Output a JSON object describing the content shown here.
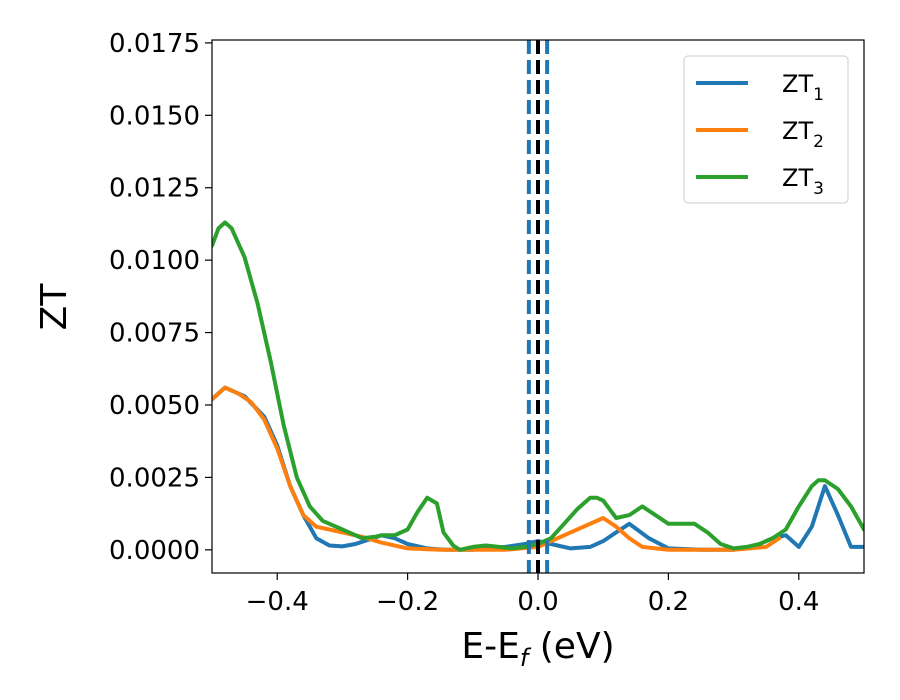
{
  "chart_data": {
    "type": "line",
    "xlabel": "E-E",
    "xlabel_sub": "f",
    "xlabel_unit": " (eV)",
    "ylabel": "ZT",
    "xlim": [
      -0.5,
      0.5
    ],
    "ylim": [
      -0.0008,
      0.0176
    ],
    "xticks": [
      -0.4,
      -0.2,
      0.0,
      0.2,
      0.4
    ],
    "xtick_labels": [
      "−0.4",
      "−0.2",
      "0.0",
      "0.2",
      "0.4"
    ],
    "yticks": [
      0.0,
      0.0025,
      0.005,
      0.0075,
      0.01,
      0.0125,
      0.015,
      0.0175
    ],
    "ytick_labels": [
      "0.0000",
      "0.0025",
      "0.0050",
      "0.0075",
      "0.0100",
      "0.0125",
      "0.0150",
      "0.0175"
    ],
    "grid": false,
    "legend_position": "top-right",
    "vlines": [
      {
        "x": -0.014,
        "color": "#1f77b4",
        "style": "dashed"
      },
      {
        "x": 0.0,
        "color": "#000000",
        "style": "dashed"
      },
      {
        "x": 0.014,
        "color": "#1f77b4",
        "style": "dashed"
      }
    ],
    "series": [
      {
        "name": "ZT",
        "name_sub": "1",
        "color": "#1f77b4",
        "x": [
          -0.5,
          -0.48,
          -0.45,
          -0.42,
          -0.4,
          -0.38,
          -0.36,
          -0.34,
          -0.32,
          -0.3,
          -0.28,
          -0.26,
          -0.24,
          -0.22,
          -0.2,
          -0.17,
          -0.155,
          -0.14,
          -0.12,
          -0.1,
          -0.08,
          -0.05,
          -0.02,
          0.0,
          0.02,
          0.05,
          0.08,
          0.1,
          0.12,
          0.14,
          0.17,
          0.2,
          0.25,
          0.3,
          0.33,
          0.36,
          0.38,
          0.4,
          0.42,
          0.44,
          0.46,
          0.48,
          0.5
        ],
        "y": [
          0.0052,
          0.0056,
          0.0053,
          0.0046,
          0.0036,
          0.0022,
          0.0012,
          0.0004,
          0.00015,
          0.00012,
          0.0002,
          0.00035,
          0.0005,
          0.0004,
          0.0002,
          5e-05,
          2e-05,
          0.0,
          0.0,
          0.0,
          5e-05,
          0.0001,
          0.0002,
          0.0003,
          0.0002,
          5e-05,
          0.0001,
          0.0003,
          0.0006,
          0.0009,
          0.0004,
          5e-05,
          0.0,
          0.0,
          0.0001,
          0.0004,
          0.0005,
          0.0001,
          0.0008,
          0.0022,
          0.0012,
          0.0001,
          0.0001
        ]
      },
      {
        "name": "ZT",
        "name_sub": "2",
        "color": "#ff7f0e",
        "x": [
          -0.5,
          -0.48,
          -0.46,
          -0.44,
          -0.42,
          -0.4,
          -0.38,
          -0.36,
          -0.34,
          -0.32,
          -0.3,
          -0.27,
          -0.24,
          -0.2,
          -0.15,
          -0.1,
          -0.05,
          0.0,
          0.05,
          0.1,
          0.12,
          0.14,
          0.16,
          0.2,
          0.25,
          0.3,
          0.35,
          0.37
        ],
        "y": [
          0.0052,
          0.0056,
          0.0054,
          0.0051,
          0.0045,
          0.0035,
          0.0022,
          0.0012,
          0.0008,
          0.0007,
          0.0006,
          0.00045,
          0.00025,
          5e-05,
          0.0,
          0.0,
          0.0,
          0.0001,
          0.0006,
          0.0011,
          0.0008,
          0.0004,
          0.0001,
          0.0,
          0.0,
          0.0,
          0.0001,
          0.0004
        ]
      },
      {
        "name": "ZT",
        "name_sub": "3",
        "color": "#2ca02c",
        "x": [
          -0.5,
          -0.49,
          -0.48,
          -0.47,
          -0.45,
          -0.43,
          -0.41,
          -0.39,
          -0.37,
          -0.35,
          -0.33,
          -0.3,
          -0.27,
          -0.25,
          -0.24,
          -0.22,
          -0.2,
          -0.185,
          -0.17,
          -0.155,
          -0.145,
          -0.13,
          -0.12,
          -0.1,
          -0.08,
          -0.06,
          -0.04,
          -0.02,
          0.0,
          0.02,
          0.04,
          0.06,
          0.08,
          0.09,
          0.1,
          0.12,
          0.14,
          0.16,
          0.18,
          0.2,
          0.22,
          0.24,
          0.26,
          0.28,
          0.3,
          0.32,
          0.34,
          0.36,
          0.38,
          0.4,
          0.42,
          0.43,
          0.44,
          0.46,
          0.48,
          0.5
        ],
        "y": [
          0.0105,
          0.0111,
          0.0113,
          0.0111,
          0.0101,
          0.0085,
          0.0065,
          0.0043,
          0.0025,
          0.0015,
          0.001,
          0.0007,
          0.0004,
          0.00045,
          0.0005,
          0.0005,
          0.0007,
          0.0013,
          0.0018,
          0.0016,
          0.0006,
          0.00015,
          0.0,
          0.0001,
          0.00015,
          0.0001,
          5e-05,
          0.0001,
          0.0002,
          0.0004,
          0.0009,
          0.0014,
          0.0018,
          0.0018,
          0.0017,
          0.0011,
          0.0012,
          0.0015,
          0.0012,
          0.0009,
          0.0009,
          0.0009,
          0.0006,
          0.0002,
          5e-05,
          0.0001,
          0.0002,
          0.0004,
          0.0007,
          0.0015,
          0.0022,
          0.0024,
          0.0024,
          0.0021,
          0.0015,
          0.0007
        ]
      }
    ]
  }
}
